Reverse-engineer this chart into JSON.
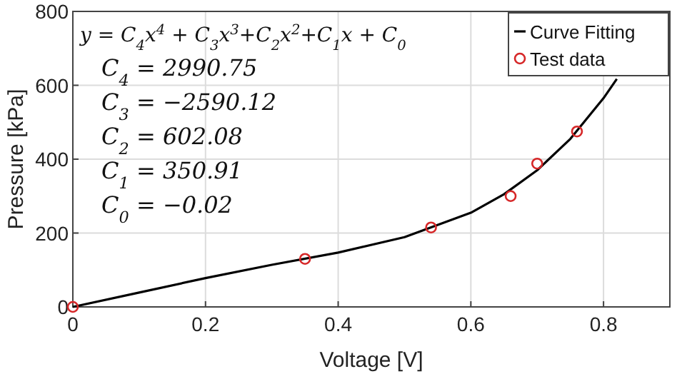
{
  "chart_data": {
    "type": "line",
    "xlabel": "Voltage [V]",
    "ylabel": "Pressure [kPa]",
    "xlim": [
      0,
      0.9
    ],
    "xticks": [
      0,
      0.2,
      0.4,
      0.6,
      0.8
    ],
    "ylim": [
      0,
      800
    ],
    "yticks": [
      0,
      200,
      400,
      600,
      800
    ],
    "grid": true,
    "legend": "top right",
    "series": [
      {
        "name": "Curve Fitting",
        "color": "#000000",
        "marker": "none",
        "line_style": "solid",
        "x": [
          0,
          0.1,
          0.2,
          0.3,
          0.4,
          0.5,
          0.6,
          0.65,
          0.7,
          0.75,
          0.8,
          0.82
        ],
        "values": [
          0,
          39,
          78,
          114,
          147,
          189,
          255,
          305,
          370,
          455,
          565,
          617
        ]
      },
      {
        "name": "Test data",
        "type": "scatter",
        "color": "#d62728",
        "marker": "circle",
        "x": [
          0,
          0.35,
          0.54,
          0.66,
          0.7,
          0.76
        ],
        "values": [
          0,
          130,
          215,
          300,
          388,
          475
        ]
      }
    ],
    "annotations": [
      "y = C$_{4}$x$^{4}$ + C$_{3}$x$^{3}$+C$_{2}$x$^{2}$+C$_{1}$x + C$_{0}$",
      "C$_{4}$ = 2990.75",
      "C$_{3}$ = −2590.12",
      "C$_{2}$ = 602.08",
      "C$_{1}$ = 350.91",
      "C$_{0}$ = −0.02"
    ]
  }
}
